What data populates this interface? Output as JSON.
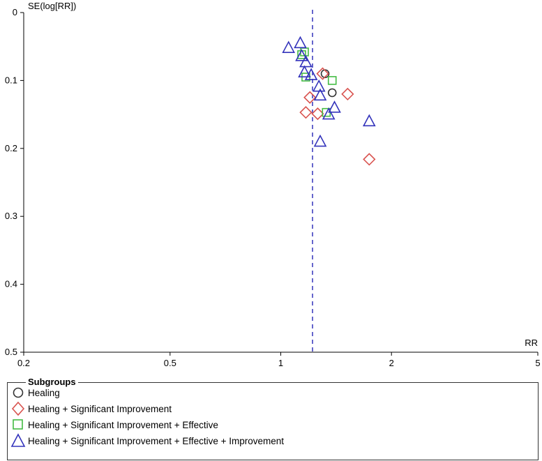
{
  "chart_data": {
    "type": "scatter",
    "ylabel": "SE(log[RR])",
    "xlabel": "RR",
    "x_scale": "log",
    "xlim": [
      0.2,
      5
    ],
    "ylim": [
      0,
      0.5
    ],
    "y_inverted": true,
    "x_ticks": [
      "0.2",
      "0.5",
      "1",
      "2",
      "5"
    ],
    "x_tick_values": [
      0.2,
      0.5,
      1,
      2,
      5
    ],
    "y_ticks": [
      "0",
      "0.1",
      "0.2",
      "0.3",
      "0.4",
      "0.5"
    ],
    "y_tick_values": [
      0,
      0.1,
      0.2,
      0.3,
      0.4,
      0.5
    ],
    "reference_line_x": 1.22,
    "legend_title": "Subgroups",
    "legend_position": "bottom",
    "series": [
      {
        "name": "Healing",
        "marker": "circle",
        "color": "#333333",
        "points": [
          {
            "x": 1.32,
            "y": 0.09
          },
          {
            "x": 1.38,
            "y": 0.118
          }
        ]
      },
      {
        "name": "Healing + Significant Improvement",
        "marker": "diamond",
        "color": "#d9534f",
        "points": [
          {
            "x": 1.3,
            "y": 0.09
          },
          {
            "x": 1.2,
            "y": 0.125
          },
          {
            "x": 1.17,
            "y": 0.147
          },
          {
            "x": 1.26,
            "y": 0.149
          },
          {
            "x": 1.52,
            "y": 0.12
          },
          {
            "x": 1.74,
            "y": 0.216
          }
        ]
      },
      {
        "name": "Healing + Significant Improvement + Effective",
        "marker": "square",
        "color": "#44bb44",
        "points": [
          {
            "x": 1.14,
            "y": 0.062
          },
          {
            "x": 1.16,
            "y": 0.058
          },
          {
            "x": 1.17,
            "y": 0.095
          },
          {
            "x": 1.38,
            "y": 0.1
          },
          {
            "x": 1.33,
            "y": 0.147
          }
        ]
      },
      {
        "name": "Healing + Significant Improvement + Effective + Improvement",
        "marker": "triangle",
        "color": "#3333bb",
        "points": [
          {
            "x": 1.05,
            "y": 0.052
          },
          {
            "x": 1.13,
            "y": 0.045
          },
          {
            "x": 1.14,
            "y": 0.064
          },
          {
            "x": 1.17,
            "y": 0.073
          },
          {
            "x": 1.16,
            "y": 0.088
          },
          {
            "x": 1.21,
            "y": 0.092
          },
          {
            "x": 1.27,
            "y": 0.109
          },
          {
            "x": 1.28,
            "y": 0.122
          },
          {
            "x": 1.35,
            "y": 0.15
          },
          {
            "x": 1.4,
            "y": 0.14
          },
          {
            "x": 1.28,
            "y": 0.19
          },
          {
            "x": 1.74,
            "y": 0.16
          }
        ]
      }
    ]
  }
}
